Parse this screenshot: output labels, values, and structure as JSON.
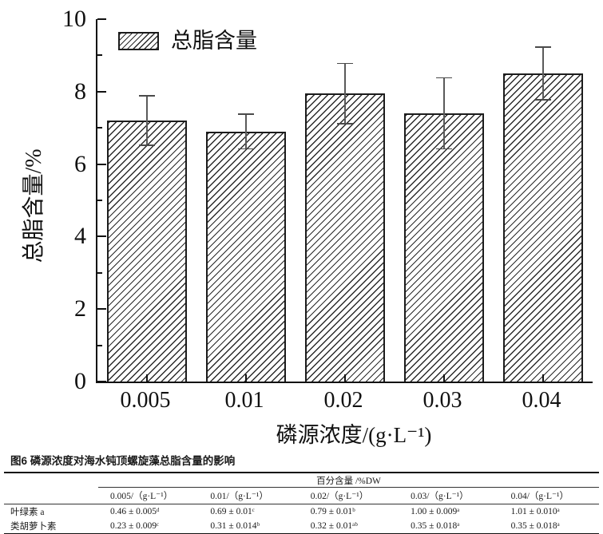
{
  "figure": {
    "caption": "图6 磷源浓度对海水钝顶螺旋藻总脂含量的影响"
  },
  "chart_data": {
    "type": "bar",
    "title": "",
    "categories": [
      "0.005",
      "0.01",
      "0.02",
      "0.03",
      "0.04"
    ],
    "values": [
      7.2,
      6.9,
      7.95,
      7.4,
      8.5
    ],
    "errors": [
      0.7,
      0.5,
      0.85,
      1.0,
      0.75
    ],
    "ylabel": "总脂含量/%",
    "xlabel": "磷源浓度/(g·L⁻¹)",
    "ylim": [
      0,
      10
    ],
    "y_major_step": 2,
    "y_minor_step": 1,
    "grid": false,
    "legend": {
      "label": "总脂含量",
      "position": "top-left",
      "pattern": "diagonal-hatch"
    },
    "bar_fill": "#ffffff",
    "hatch_color": "#2a2a2a",
    "bar_edge_color": "#1c1c1c",
    "error_bar_color": "#5a5a5a"
  },
  "table": {
    "group_header": "百分含量 /%DW",
    "col_headers": [
      "0.005/（g·L⁻¹）",
      "0.01/（g·L⁻¹）",
      "0.02/（g·L⁻¹）",
      "0.03/（g·L⁻¹）",
      "0.04/（g·L⁻¹）"
    ],
    "rows": [
      {
        "label": "叶绿素 a",
        "values": [
          "0.46 ± 0.005ᵈ",
          "0.69 ± 0.01ᶜ",
          "0.79 ± 0.01ᵇ",
          "1.00 ± 0.009ᵃ",
          "1.01 ± 0.010ᵃ"
        ]
      },
      {
        "label": "类胡萝卜素",
        "values": [
          "0.23 ± 0.009ᶜ",
          "0.31 ± 0.014ᵇ",
          "0.32 ± 0.01ᵃᵇ",
          "0.35 ± 0.018ᵃ",
          "0.35 ± 0.018ᵃ"
        ]
      }
    ]
  }
}
